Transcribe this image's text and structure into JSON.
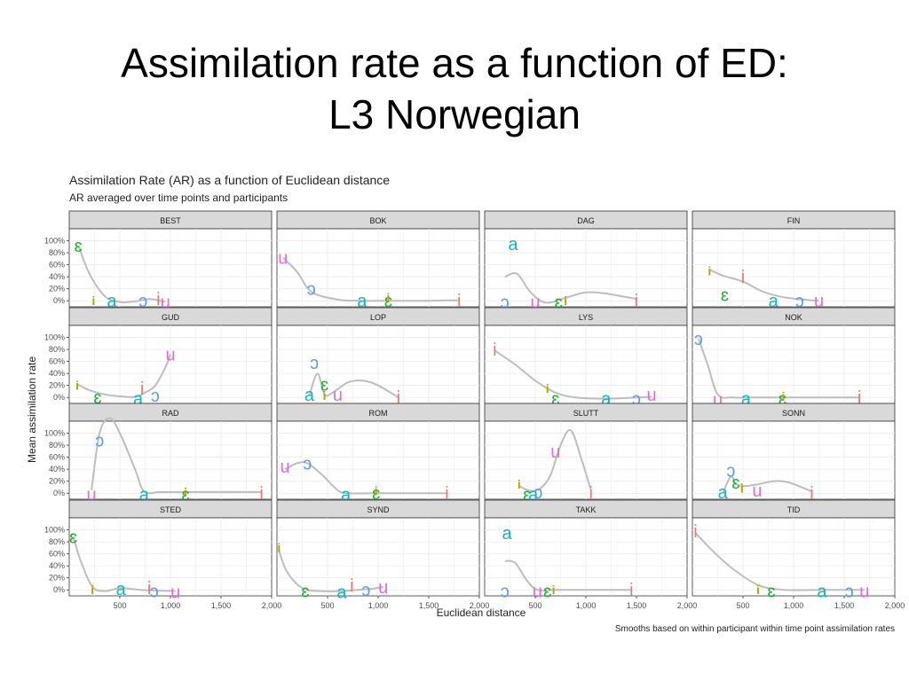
{
  "slide": {
    "title_line1": "Assimilation rate as a function of ED:",
    "title_line2": "L3 Norwegian"
  },
  "chart_data": {
    "type": "line",
    "title": "Assimilation Rate (AR) as a function of Euclidean distance",
    "subtitle": "AR averaged over time points and participants",
    "caption": "Smooths based on within participant within time point assimilation rates",
    "xlabel": "Euclidean distance",
    "ylabel": "Mean assimilation rate",
    "xlim": [
      0,
      2000
    ],
    "ylim": [
      -10,
      120
    ],
    "x_ticks": [
      500,
      1000,
      1500,
      2000
    ],
    "x_tick_labels": [
      "500",
      "1,000",
      "1,500",
      "2,000"
    ],
    "y_ticks": [
      0,
      20,
      40,
      60,
      80,
      100
    ],
    "y_tick_labels": [
      "0%",
      "20%",
      "40%",
      "60%",
      "80%",
      "100%"
    ],
    "grid": true,
    "legend": "none",
    "colors": {
      "ɛ": "#1fb031",
      "a": "#17b4bc",
      "ɔ": "#5e9bef",
      "u": "#e56bd6",
      "i": "#f0776b",
      "i-self": "#b3a400",
      "smooth": "#bdbdbd",
      "strip": "#d9d9d9"
    },
    "panels": [
      {
        "name": "BEST",
        "points": [
          {
            "label": "ɛ",
            "x": 90,
            "y": 92
          },
          {
            "label": "i",
            "x": 240,
            "y": 0,
            "self": true
          },
          {
            "label": "a",
            "x": 420,
            "y": 0
          },
          {
            "label": "ɔ",
            "x": 730,
            "y": 0
          },
          {
            "label": "i",
            "x": 880,
            "y": 3
          },
          {
            "label": "u",
            "x": 950,
            "y": -2
          }
        ],
        "smooth": [
          [
            90,
            92
          ],
          [
            200,
            45
          ],
          [
            350,
            8
          ],
          [
            500,
            -2
          ],
          [
            650,
            -1
          ],
          [
            800,
            3
          ],
          [
            950,
            -2
          ]
        ]
      },
      {
        "name": "BOK",
        "points": [
          {
            "label": "u",
            "x": 60,
            "y": 72
          },
          {
            "label": "ɔ",
            "x": 340,
            "y": 20
          },
          {
            "label": "a",
            "x": 840,
            "y": 0
          },
          {
            "label": "ɛ",
            "x": 1100,
            "y": 0
          },
          {
            "label": "i",
            "x": 1100,
            "y": 5,
            "self": true
          },
          {
            "label": "i",
            "x": 1800,
            "y": 0
          }
        ],
        "smooth": [
          [
            60,
            72
          ],
          [
            200,
            48
          ],
          [
            340,
            15
          ],
          [
            600,
            2
          ],
          [
            840,
            0
          ],
          [
            1100,
            0
          ],
          [
            1500,
            0
          ],
          [
            1800,
            1
          ]
        ]
      },
      {
        "name": "DAG",
        "points": [
          {
            "label": "a",
            "x": 280,
            "y": 95
          },
          {
            "label": "ɔ",
            "x": 200,
            "y": -2
          },
          {
            "label": "u",
            "x": 500,
            "y": -2
          },
          {
            "label": "ɛ",
            "x": 730,
            "y": -2
          },
          {
            "label": "i",
            "x": 800,
            "y": 0,
            "self": true
          },
          {
            "label": "i",
            "x": 1500,
            "y": 0
          }
        ],
        "smooth": [
          [
            200,
            40
          ],
          [
            320,
            45
          ],
          [
            450,
            15
          ],
          [
            600,
            -3
          ],
          [
            800,
            5
          ],
          [
            1000,
            14
          ],
          [
            1200,
            12
          ],
          [
            1500,
            3
          ]
        ]
      },
      {
        "name": "FIN",
        "points": [
          {
            "label": "i",
            "x": 170,
            "y": 50,
            "self": true
          },
          {
            "label": "i",
            "x": 500,
            "y": 40
          },
          {
            "label": "ɛ",
            "x": 320,
            "y": 10
          },
          {
            "label": "a",
            "x": 800,
            "y": 0
          },
          {
            "label": "ɔ",
            "x": 1060,
            "y": 0
          },
          {
            "label": "u",
            "x": 1250,
            "y": 0
          }
        ],
        "smooth": [
          [
            170,
            52
          ],
          [
            300,
            42
          ],
          [
            500,
            32
          ],
          [
            700,
            15
          ],
          [
            900,
            6
          ],
          [
            1100,
            2
          ],
          [
            1250,
            0
          ]
        ]
      },
      {
        "name": "GUD",
        "points": [
          {
            "label": "i",
            "x": 80,
            "y": 20,
            "self": true
          },
          {
            "label": "ɛ",
            "x": 280,
            "y": 0
          },
          {
            "label": "a",
            "x": 680,
            "y": -2
          },
          {
            "label": "i",
            "x": 720,
            "y": 15
          },
          {
            "label": "ɔ",
            "x": 850,
            "y": 3
          },
          {
            "label": "u",
            "x": 1000,
            "y": 72
          }
        ],
        "smooth": [
          [
            80,
            22
          ],
          [
            200,
            12
          ],
          [
            350,
            5
          ],
          [
            500,
            2
          ],
          [
            650,
            1
          ],
          [
            750,
            8
          ],
          [
            850,
            20
          ],
          [
            950,
            50
          ],
          [
            1000,
            72
          ]
        ]
      },
      {
        "name": "LOP",
        "points": [
          {
            "label": "ɔ",
            "x": 370,
            "y": 58
          },
          {
            "label": "a",
            "x": 320,
            "y": 5
          },
          {
            "label": "ɛ",
            "x": 470,
            "y": 22
          },
          {
            "label": "i",
            "x": 470,
            "y": 3,
            "self": true
          },
          {
            "label": "u",
            "x": 600,
            "y": 5
          },
          {
            "label": "i",
            "x": 1200,
            "y": 0
          }
        ],
        "smooth": [
          [
            320,
            3
          ],
          [
            400,
            40
          ],
          [
            470,
            5
          ],
          [
            550,
            8
          ],
          [
            700,
            25
          ],
          [
            850,
            28
          ],
          [
            1000,
            20
          ],
          [
            1200,
            0
          ]
        ]
      },
      {
        "name": "LYS",
        "points": [
          {
            "label": "i",
            "x": 100,
            "y": 80
          },
          {
            "label": "i",
            "x": 620,
            "y": 15,
            "self": true
          },
          {
            "label": "ɛ",
            "x": 700,
            "y": -2
          },
          {
            "label": "a",
            "x": 1200,
            "y": -2
          },
          {
            "label": "ɔ",
            "x": 1500,
            "y": -2
          },
          {
            "label": "u",
            "x": 1650,
            "y": 5
          }
        ],
        "smooth": [
          [
            100,
            78
          ],
          [
            300,
            55
          ],
          [
            500,
            28
          ],
          [
            700,
            8
          ],
          [
            900,
            0
          ],
          [
            1200,
            -2
          ],
          [
            1500,
            0
          ],
          [
            1650,
            1
          ]
        ]
      },
      {
        "name": "NOK",
        "points": [
          {
            "label": "ɔ",
            "x": 60,
            "y": 98
          },
          {
            "label": "u",
            "x": 250,
            "y": -3
          },
          {
            "label": "a",
            "x": 530,
            "y": -2
          },
          {
            "label": "ɛ",
            "x": 890,
            "y": -2
          },
          {
            "label": "i",
            "x": 900,
            "y": 2,
            "self": true
          },
          {
            "label": "i",
            "x": 1650,
            "y": 0
          }
        ],
        "smooth": [
          [
            60,
            98
          ],
          [
            150,
            55
          ],
          [
            250,
            5
          ],
          [
            400,
            0
          ],
          [
            600,
            0
          ],
          [
            900,
            0
          ],
          [
            1300,
            0
          ],
          [
            1650,
            0
          ]
        ]
      },
      {
        "name": "RAD",
        "points": [
          {
            "label": "ɔ",
            "x": 300,
            "y": 88
          },
          {
            "label": "u",
            "x": 220,
            "y": -2
          },
          {
            "label": "a",
            "x": 740,
            "y": -2
          },
          {
            "label": "ɛ",
            "x": 1150,
            "y": -2
          },
          {
            "label": "i",
            "x": 1150,
            "y": 2,
            "self": true
          },
          {
            "label": "i",
            "x": 1900,
            "y": 0
          }
        ],
        "smooth": [
          [
            220,
            5
          ],
          [
            300,
            100
          ],
          [
            400,
            125
          ],
          [
            500,
            100
          ],
          [
            650,
            40
          ],
          [
            740,
            3
          ],
          [
            900,
            2
          ],
          [
            1150,
            2
          ],
          [
            1500,
            2
          ],
          [
            1900,
            2
          ]
        ]
      },
      {
        "name": "ROM",
        "points": [
          {
            "label": "u",
            "x": 80,
            "y": 45
          },
          {
            "label": "ɔ",
            "x": 300,
            "y": 50
          },
          {
            "label": "a",
            "x": 680,
            "y": -2
          },
          {
            "label": "ɛ",
            "x": 980,
            "y": 0
          },
          {
            "label": "i",
            "x": 980,
            "y": 4,
            "self": true
          },
          {
            "label": "i",
            "x": 1680,
            "y": 0
          }
        ],
        "smooth": [
          [
            80,
            40
          ],
          [
            200,
            50
          ],
          [
            300,
            50
          ],
          [
            450,
            30
          ],
          [
            600,
            5
          ],
          [
            700,
            0
          ],
          [
            980,
            0
          ],
          [
            1300,
            0
          ],
          [
            1680,
            0
          ]
        ]
      },
      {
        "name": "SLUTT",
        "points": [
          {
            "label": "i",
            "x": 340,
            "y": 15,
            "self": true
          },
          {
            "label": "ɛ",
            "x": 420,
            "y": -2
          },
          {
            "label": "a",
            "x": 480,
            "y": -2
          },
          {
            "label": "ɔ",
            "x": 530,
            "y": 2
          },
          {
            "label": "u",
            "x": 700,
            "y": 70
          },
          {
            "label": "i",
            "x": 1050,
            "y": 0
          }
        ],
        "smooth": [
          [
            340,
            12
          ],
          [
            450,
            4
          ],
          [
            550,
            8
          ],
          [
            650,
            30
          ],
          [
            750,
            80
          ],
          [
            850,
            105
          ],
          [
            950,
            60
          ],
          [
            1050,
            5
          ]
        ]
      },
      {
        "name": "SONN",
        "points": [
          {
            "label": "ɔ",
            "x": 380,
            "y": 38
          },
          {
            "label": "a",
            "x": 300,
            "y": 2
          },
          {
            "label": "ɛ",
            "x": 430,
            "y": 18
          },
          {
            "label": "i",
            "x": 490,
            "y": 8,
            "self": true
          },
          {
            "label": "u",
            "x": 640,
            "y": 5
          },
          {
            "label": "i",
            "x": 1180,
            "y": 0
          }
        ],
        "smooth": [
          [
            300,
            0
          ],
          [
            380,
            28
          ],
          [
            430,
            15
          ],
          [
            520,
            12
          ],
          [
            650,
            15
          ],
          [
            800,
            20
          ],
          [
            950,
            18
          ],
          [
            1180,
            3
          ]
        ]
      },
      {
        "name": "STED",
        "points": [
          {
            "label": "ɛ",
            "x": 40,
            "y": 88
          },
          {
            "label": "i",
            "x": 230,
            "y": 0,
            "self": true
          },
          {
            "label": "a",
            "x": 510,
            "y": 2
          },
          {
            "label": "i",
            "x": 790,
            "y": 3
          },
          {
            "label": "ɔ",
            "x": 840,
            "y": -2
          },
          {
            "label": "u",
            "x": 1050,
            "y": -3
          }
        ],
        "smooth": [
          [
            40,
            88
          ],
          [
            120,
            45
          ],
          [
            230,
            5
          ],
          [
            350,
            -2
          ],
          [
            510,
            3
          ],
          [
            700,
            0
          ],
          [
            840,
            -1
          ],
          [
            1050,
            -2
          ]
        ]
      },
      {
        "name": "SYND",
        "points": [
          {
            "label": "i",
            "x": 20,
            "y": 70,
            "self": true
          },
          {
            "label": "ɛ",
            "x": 280,
            "y": -2
          },
          {
            "label": "a",
            "x": 640,
            "y": -3
          },
          {
            "label": "i",
            "x": 740,
            "y": 8
          },
          {
            "label": "ɔ",
            "x": 880,
            "y": 0
          },
          {
            "label": "u",
            "x": 1050,
            "y": 5
          }
        ],
        "smooth": [
          [
            20,
            65
          ],
          [
            100,
            30
          ],
          [
            250,
            3
          ],
          [
            450,
            -2
          ],
          [
            640,
            -2
          ],
          [
            800,
            0
          ],
          [
            950,
            2
          ],
          [
            1050,
            5
          ]
        ]
      },
      {
        "name": "TAKK",
        "points": [
          {
            "label": "a",
            "x": 220,
            "y": 95
          },
          {
            "label": "ɔ",
            "x": 200,
            "y": -2
          },
          {
            "label": "u",
            "x": 520,
            "y": -2
          },
          {
            "label": "ɛ",
            "x": 620,
            "y": -2
          },
          {
            "label": "i",
            "x": 680,
            "y": 0,
            "self": true
          },
          {
            "label": "i",
            "x": 1450,
            "y": 0
          }
        ],
        "smooth": [
          [
            200,
            48
          ],
          [
            300,
            45
          ],
          [
            420,
            15
          ],
          [
            520,
            0
          ],
          [
            680,
            0
          ],
          [
            1000,
            0
          ],
          [
            1450,
            0
          ]
        ]
      },
      {
        "name": "TID",
        "points": [
          {
            "label": "i",
            "x": 30,
            "y": 98
          },
          {
            "label": "i",
            "x": 650,
            "y": 0,
            "self": true
          },
          {
            "label": "ɛ",
            "x": 780,
            "y": -2
          },
          {
            "label": "a",
            "x": 1280,
            "y": -2
          },
          {
            "label": "ɔ",
            "x": 1550,
            "y": -2
          },
          {
            "label": "u",
            "x": 1700,
            "y": -2
          }
        ],
        "smooth": [
          [
            30,
            95
          ],
          [
            200,
            65
          ],
          [
            400,
            35
          ],
          [
            650,
            8
          ],
          [
            900,
            0
          ],
          [
            1280,
            0
          ],
          [
            1550,
            0
          ],
          [
            1700,
            0
          ]
        ]
      }
    ]
  }
}
